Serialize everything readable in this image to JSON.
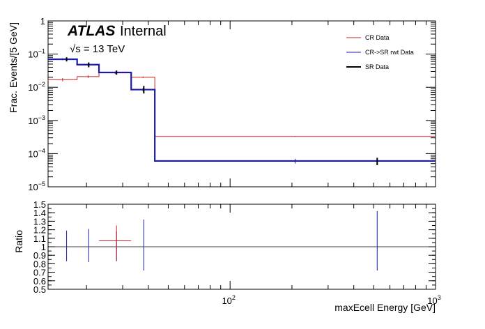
{
  "chart_data": [
    {
      "type": "line",
      "panel": "main",
      "annotation_experiment": "ATLAS",
      "annotation_status": "Internal",
      "annotation_sqrt": "√s",
      "annotation_energy": " = 13 TeV",
      "ylabel": "Frac. Events/[5 GeV]",
      "yscale": "log",
      "xscale": "log",
      "xlim": [
        13,
        1000
      ],
      "ylim": [
        1e-05,
        1
      ],
      "y_tick_labels": [
        {
          "mantissa": "10",
          "exp": "−5",
          "value": 1e-05
        },
        {
          "mantissa": "10",
          "exp": "−4",
          "value": 0.0001
        },
        {
          "mantissa": "10",
          "exp": "−3",
          "value": 0.001
        },
        {
          "mantissa": "10",
          "exp": "−2",
          "value": 0.01
        },
        {
          "mantissa": "10",
          "exp": "−1",
          "value": 0.1
        },
        {
          "mantissa": "1",
          "exp": "",
          "value": 1
        }
      ],
      "legend": "top-right",
      "series": [
        {
          "name": "CR Data",
          "color": "#cc2222",
          "bins": [
            {
              "x0": 13,
              "x1": 18,
              "y": 0.017,
              "err": 0.002
            },
            {
              "x0": 18,
              "x1": 23,
              "y": 0.021,
              "err": 0.002
            },
            {
              "x0": 23,
              "x1": 33,
              "y": 0.027,
              "err": 0.002
            },
            {
              "x0": 33,
              "x1": 43,
              "y": 0.02,
              "err": 0.001
            },
            {
              "x0": 43,
              "x1": 1000,
              "y": 0.00033,
              "err": 1e-05
            }
          ]
        },
        {
          "name": "CR->SR rwt Data",
          "color": "#1a1aa8",
          "bins": [
            {
              "x0": 13,
              "x1": 18,
              "y": 0.07,
              "err": 0.005
            },
            {
              "x0": 18,
              "x1": 23,
              "y": 0.048,
              "err": 0.004
            },
            {
              "x0": 23,
              "x1": 33,
              "y": 0.028,
              "err": 0.002
            },
            {
              "x0": 33,
              "x1": 43,
              "y": 0.0085,
              "err": 0.001
            },
            {
              "x0": 43,
              "x1": 1000,
              "y": 6e-05,
              "err": 1e-05
            }
          ]
        },
        {
          "name": "SR Data",
          "color": "#000000",
          "points": [
            {
              "x": 16,
              "y": 0.07,
              "ylo": 0.06,
              "yhi": 0.08
            },
            {
              "x": 20.5,
              "y": 0.048,
              "ylo": 0.04,
              "yhi": 0.056
            },
            {
              "x": 28,
              "y": 0.028,
              "ylo": 0.024,
              "yhi": 0.032
            },
            {
              "x": 38,
              "y": 0.0085,
              "ylo": 0.0065,
              "yhi": 0.011
            },
            {
              "x": 520,
              "y": 6e-05,
              "ylo": 4.5e-05,
              "yhi": 7.5e-05
            }
          ]
        }
      ]
    },
    {
      "type": "scatter",
      "panel": "ratio",
      "ylabel": "Ratio",
      "xlabel": "maxEcell Energy [GeV]",
      "xscale": "log",
      "xlim": [
        13,
        1000
      ],
      "ylim": [
        0.5,
        1.5
      ],
      "y_tick_labels": [
        "0.5",
        "0.6",
        "0.7",
        "0.8",
        "0.9",
        "1",
        "1.1",
        "1.2",
        "1.3",
        "1.4",
        "1.5"
      ],
      "x_tick_labels": [
        {
          "mantissa": "10",
          "exp": "2",
          "value": 100
        },
        {
          "mantissa": "10",
          "exp": "3",
          "value": 1000
        }
      ],
      "reference_line": 1.0,
      "series": [
        {
          "color": "#1a1aa8",
          "points": [
            {
              "x": 16,
              "y": 1.0,
              "ylo": 0.83,
              "yhi": 1.19
            },
            {
              "x": 20.5,
              "y": 1.0,
              "ylo": 0.82,
              "yhi": 1.21
            },
            {
              "x": 28,
              "y": 1.0,
              "ylo": 0.83,
              "yhi": 1.18
            },
            {
              "x": 38,
              "y": 1.0,
              "ylo": 0.72,
              "yhi": 1.32
            },
            {
              "x": 520,
              "y": 1.0,
              "ylo": 0.72,
              "yhi": 1.42
            }
          ]
        },
        {
          "color": "#cc2222",
          "points": [
            {
              "x": 28,
              "x0": 23,
              "x1": 33,
              "y": 1.07,
              "ylo": 0.84,
              "yhi": 1.25
            }
          ]
        }
      ]
    }
  ]
}
